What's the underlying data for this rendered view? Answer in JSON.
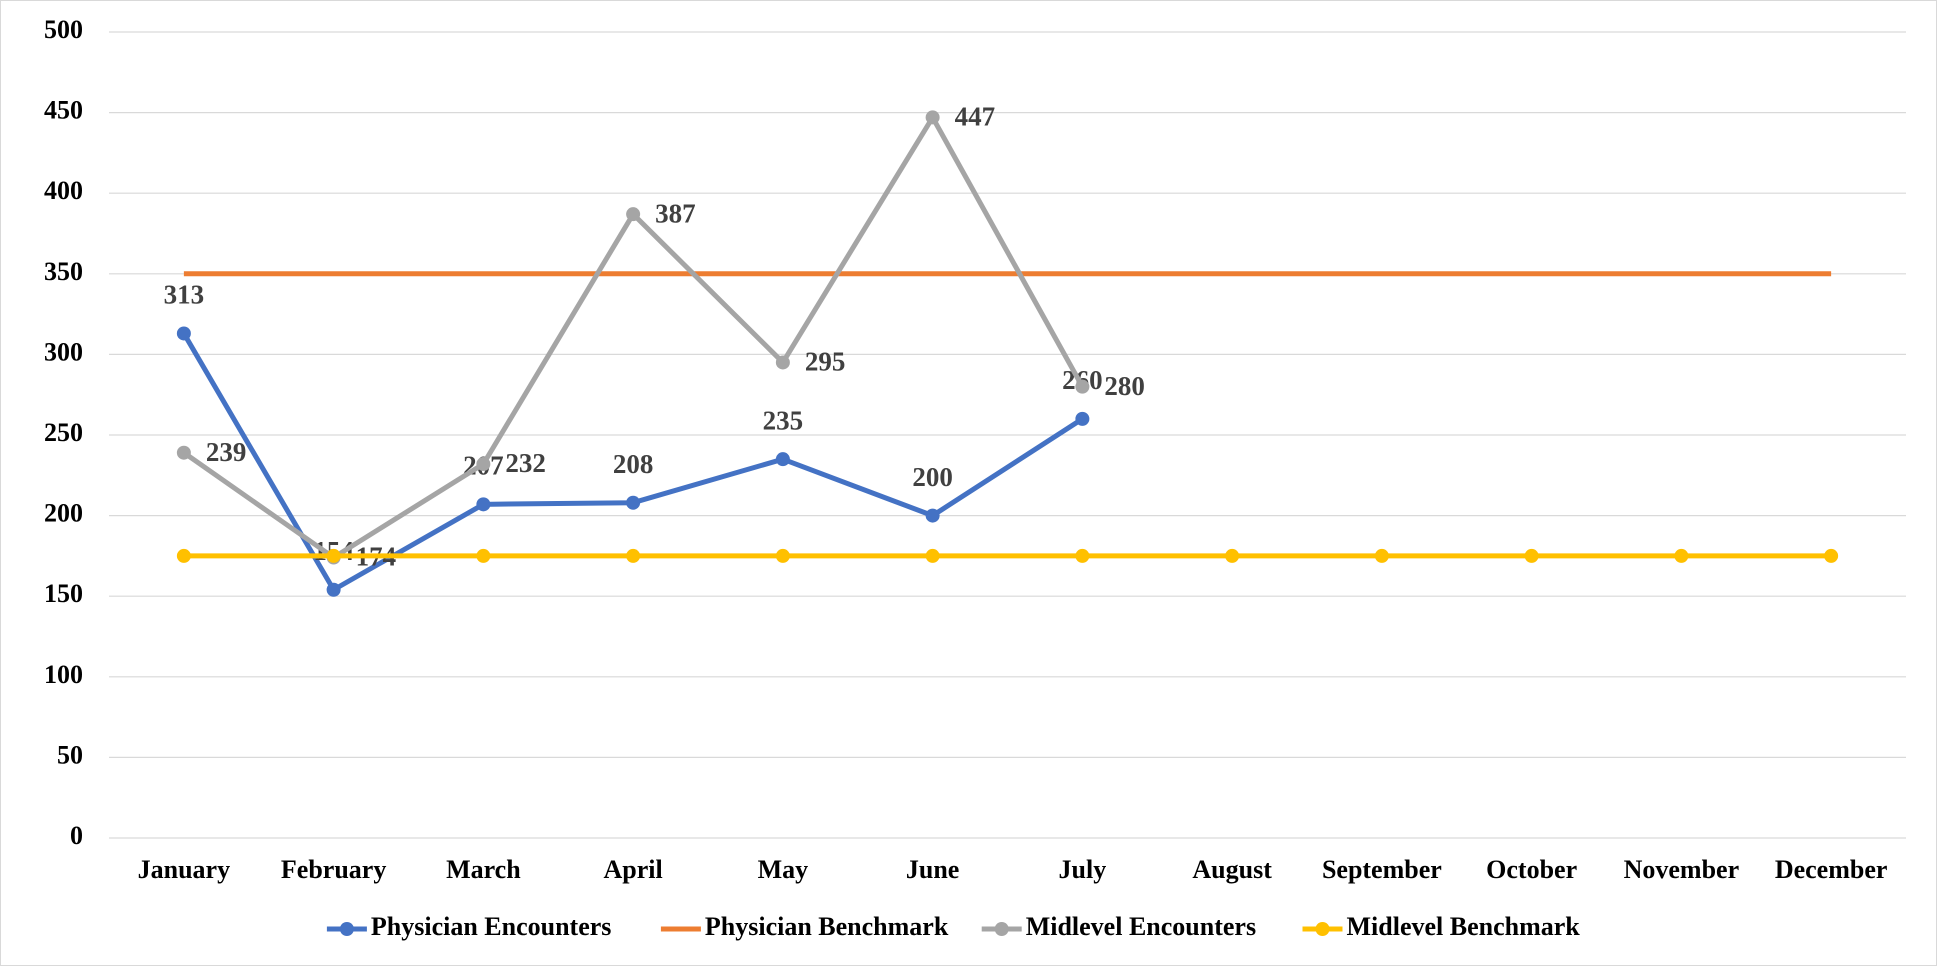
{
  "chart_data": {
    "type": "line",
    "categories": [
      "January",
      "February",
      "March",
      "April",
      "May",
      "June",
      "July",
      "August",
      "September",
      "October",
      "November",
      "December"
    ],
    "series": [
      {
        "name": "Physician Encounters",
        "color": "#4472c4",
        "marker": true,
        "labels": true,
        "values": [
          313,
          154,
          207,
          208,
          235,
          200,
          260,
          null,
          null,
          null,
          null,
          null
        ]
      },
      {
        "name": "Physician Benchmark",
        "color": "#ed7d31",
        "marker": false,
        "labels": false,
        "values": [
          350,
          350,
          350,
          350,
          350,
          350,
          350,
          350,
          350,
          350,
          350,
          350
        ]
      },
      {
        "name": "Midlevel Encounters",
        "color": "#a5a5a5",
        "marker": true,
        "labels": true,
        "values": [
          239,
          174,
          232,
          387,
          295,
          447,
          280,
          null,
          null,
          null,
          null,
          null
        ]
      },
      {
        "name": "Midlevel Benchmark",
        "color": "#ffc000",
        "marker": true,
        "labels": false,
        "values": [
          175,
          175,
          175,
          175,
          175,
          175,
          175,
          175,
          175,
          175,
          175,
          175
        ]
      }
    ],
    "ylim": [
      0,
      500
    ],
    "yticks": [
      0,
      50,
      100,
      150,
      200,
      250,
      300,
      350,
      400,
      450,
      500
    ],
    "grid": true,
    "legend": "bottom"
  }
}
